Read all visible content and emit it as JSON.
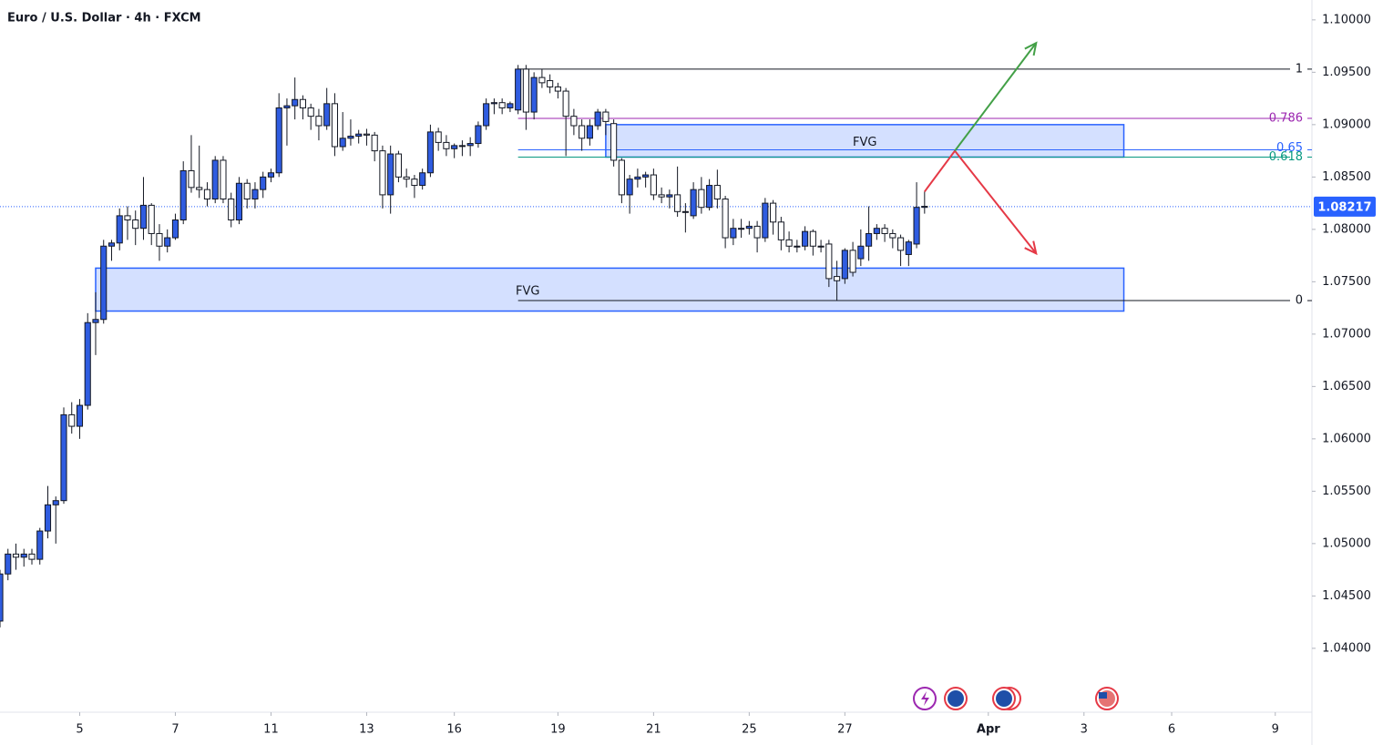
{
  "chart_data": {
    "type": "candlestick",
    "title": "Euro / U.S. Dollar · 4h · FXCM",
    "up_color": "#2f5ce0",
    "down_color": "#ffffff",
    "outline_color": "#131722",
    "ohlc": [
      [
        1.0426,
        1.0475,
        1.042,
        1.0471
      ],
      [
        1.0471,
        1.0495,
        1.0465,
        1.049
      ],
      [
        1.049,
        1.05,
        1.0475,
        1.0487
      ],
      [
        1.0487,
        1.0495,
        1.0478,
        1.049
      ],
      [
        1.049,
        1.0495,
        1.048,
        1.0485
      ],
      [
        1.0485,
        1.0515,
        1.048,
        1.0512
      ],
      [
        1.0512,
        1.0555,
        1.0505,
        1.0537
      ],
      [
        1.0537,
        1.0545,
        1.05,
        1.0541
      ],
      [
        1.0541,
        1.063,
        1.0538,
        1.0623
      ],
      [
        1.0623,
        1.0635,
        1.0605,
        1.0612
      ],
      [
        1.0612,
        1.0638,
        1.06,
        1.0632
      ],
      [
        1.0632,
        1.072,
        1.0628,
        1.0711
      ],
      [
        1.0711,
        1.074,
        1.068,
        1.0714
      ],
      [
        1.0714,
        1.079,
        1.071,
        1.0784
      ],
      [
        1.0784,
        1.079,
        1.077,
        1.0787
      ],
      [
        1.0787,
        1.082,
        1.078,
        1.0813
      ],
      [
        1.0813,
        1.0822,
        1.079,
        1.0809
      ],
      [
        1.0809,
        1.0818,
        1.0785,
        1.0801
      ],
      [
        1.0801,
        1.085,
        1.079,
        1.0823
      ],
      [
        1.0823,
        1.0825,
        1.0785,
        1.0796
      ],
      [
        1.0796,
        1.0805,
        1.077,
        1.0784
      ],
      [
        1.0784,
        1.08,
        1.0778,
        1.0792
      ],
      [
        1.0792,
        1.0815,
        1.079,
        1.0809
      ],
      [
        1.0809,
        1.0865,
        1.0805,
        1.0856
      ],
      [
        1.0856,
        1.089,
        1.0835,
        1.084
      ],
      [
        1.084,
        1.088,
        1.083,
        1.0838
      ],
      [
        1.0838,
        1.0845,
        1.0822,
        1.0829
      ],
      [
        1.0829,
        1.087,
        1.0825,
        1.0866
      ],
      [
        1.0866,
        1.087,
        1.0825,
        1.0829
      ],
      [
        1.0829,
        1.0835,
        1.0802,
        1.0809
      ],
      [
        1.0809,
        1.085,
        1.0805,
        1.0844
      ],
      [
        1.0844,
        1.0848,
        1.082,
        1.0829
      ],
      [
        1.0829,
        1.0845,
        1.082,
        1.0838
      ],
      [
        1.0838,
        1.0855,
        1.083,
        1.085
      ],
      [
        1.085,
        1.0858,
        1.0845,
        1.0854
      ],
      [
        1.0854,
        1.093,
        1.085,
        1.0916
      ],
      [
        1.0916,
        1.0925,
        1.088,
        1.0918
      ],
      [
        1.0918,
        1.0945,
        1.0905,
        1.0924
      ],
      [
        1.0924,
        1.0928,
        1.0905,
        1.0916
      ],
      [
        1.0916,
        1.092,
        1.0895,
        1.0908
      ],
      [
        1.0908,
        1.0915,
        1.0885,
        1.0899
      ],
      [
        1.0899,
        1.0935,
        1.0895,
        1.092
      ],
      [
        1.092,
        1.093,
        1.087,
        1.0879
      ],
      [
        1.0879,
        1.0912,
        1.0875,
        1.0887
      ],
      [
        1.0887,
        1.0905,
        1.088,
        1.0889
      ],
      [
        1.0889,
        1.0895,
        1.0882,
        1.0891
      ],
      [
        1.0891,
        1.0896,
        1.088,
        1.089
      ],
      [
        1.089,
        1.0893,
        1.0865,
        1.0875
      ],
      [
        1.0875,
        1.088,
        1.082,
        1.0833
      ],
      [
        1.0833,
        1.088,
        1.0815,
        1.0872
      ],
      [
        1.0872,
        1.0875,
        1.0845,
        1.085
      ],
      [
        1.085,
        1.0858,
        1.084,
        1.0848
      ],
      [
        1.0848,
        1.0852,
        1.083,
        1.0842
      ],
      [
        1.0842,
        1.0858,
        1.0838,
        1.0854
      ],
      [
        1.0854,
        1.09,
        1.085,
        1.0893
      ],
      [
        1.0893,
        1.0897,
        1.0875,
        1.0883
      ],
      [
        1.0883,
        1.089,
        1.087,
        1.0877
      ],
      [
        1.0877,
        1.0882,
        1.0868,
        1.088
      ],
      [
        1.088,
        1.0885,
        1.087,
        1.088
      ],
      [
        1.088,
        1.0888,
        1.087,
        1.0882
      ],
      [
        1.0882,
        1.0903,
        1.0878,
        1.0899
      ],
      [
        1.0899,
        1.0925,
        1.0895,
        1.092
      ],
      [
        1.092,
        1.0925,
        1.091,
        1.0921
      ],
      [
        1.0921,
        1.0925,
        1.091,
        1.0916
      ],
      [
        1.0916,
        1.0922,
        1.0912,
        1.092
      ],
      [
        1.0914,
        1.0957,
        1.091,
        1.0953
      ],
      [
        1.0953,
        1.0957,
        1.0895,
        1.0912
      ],
      [
        1.0912,
        1.095,
        1.0905,
        1.0945
      ],
      [
        1.0945,
        1.0953,
        1.0935,
        1.094
      ],
      [
        1.0942,
        1.0948,
        1.093,
        1.0936
      ],
      [
        1.0936,
        1.094,
        1.0925,
        1.0932
      ],
      [
        1.0932,
        1.0935,
        1.087,
        1.0908
      ],
      [
        1.0908,
        1.0915,
        1.089,
        1.0899
      ],
      [
        1.0899,
        1.0905,
        1.0875,
        1.0887
      ],
      [
        1.0887,
        1.0905,
        1.088,
        1.0899
      ],
      [
        1.0899,
        1.0915,
        1.0895,
        1.0912
      ],
      [
        1.0912,
        1.0915,
        1.089,
        1.0903
      ],
      [
        1.0901,
        1.0905,
        1.086,
        1.0866
      ],
      [
        1.0866,
        1.0868,
        1.0825,
        1.0833
      ],
      [
        1.0833,
        1.0852,
        1.0815,
        1.0848
      ],
      [
        1.0848,
        1.0858,
        1.084,
        1.085
      ],
      [
        1.085,
        1.0855,
        1.084,
        1.0852
      ],
      [
        1.0852,
        1.0858,
        1.0828,
        1.0833
      ],
      [
        1.0833,
        1.084,
        1.0825,
        1.0831
      ],
      [
        1.0831,
        1.0838,
        1.082,
        1.0833
      ],
      [
        1.0833,
        1.086,
        1.0812,
        1.0817
      ],
      [
        1.0817,
        1.0825,
        1.0797,
        1.0817
      ],
      [
        1.0813,
        1.0845,
        1.081,
        1.0838
      ],
      [
        1.0838,
        1.085,
        1.0815,
        1.0821
      ],
      [
        1.0821,
        1.0848,
        1.0818,
        1.0842
      ],
      [
        1.0842,
        1.0857,
        1.082,
        1.0829
      ],
      [
        1.0829,
        1.0832,
        1.0782,
        1.0792
      ],
      [
        1.0792,
        1.081,
        1.0785,
        1.0801
      ],
      [
        1.0801,
        1.081,
        1.0792,
        1.0801
      ],
      [
        1.0801,
        1.0808,
        1.0795,
        1.0803
      ],
      [
        1.0803,
        1.0808,
        1.0778,
        1.0792
      ],
      [
        1.0792,
        1.083,
        1.0788,
        1.0825
      ],
      [
        1.0825,
        1.0828,
        1.0795,
        1.0807
      ],
      [
        1.0807,
        1.0812,
        1.078,
        1.079
      ],
      [
        1.079,
        1.0798,
        1.0778,
        1.0784
      ],
      [
        1.0784,
        1.079,
        1.0778,
        1.0784
      ],
      [
        1.0784,
        1.0803,
        1.078,
        1.0798
      ],
      [
        1.0798,
        1.08,
        1.0775,
        1.0784
      ],
      [
        1.0784,
        1.079,
        1.0778,
        1.0784
      ],
      [
        1.0786,
        1.079,
        1.0745,
        1.0753
      ],
      [
        1.0755,
        1.077,
        1.0732,
        1.0751
      ],
      [
        1.0753,
        1.0782,
        1.0748,
        1.078
      ],
      [
        1.078,
        1.0788,
        1.0755,
        1.0759
      ],
      [
        1.0772,
        1.08,
        1.0765,
        1.0784
      ],
      [
        1.0784,
        1.0822,
        1.077,
        1.0796
      ],
      [
        1.0796,
        1.0805,
        1.079,
        1.0801
      ],
      [
        1.0801,
        1.0805,
        1.0788,
        1.0796
      ],
      [
        1.0796,
        1.08,
        1.0782,
        1.0792
      ],
      [
        1.0792,
        1.0795,
        1.0765,
        1.078
      ],
      [
        1.0776,
        1.079,
        1.0765,
        1.0788
      ],
      [
        1.0786,
        1.0845,
        1.0782,
        1.0821
      ],
      [
        1.0821,
        1.0836,
        1.0815,
        1.0822
      ]
    ],
    "xlim": [
      0,
      164.6
    ],
    "xticks": [
      {
        "value": 10,
        "label": "5"
      },
      {
        "value": 22,
        "label": "7"
      },
      {
        "value": 34,
        "label": "11"
      },
      {
        "value": 46,
        "label": "13"
      },
      {
        "value": 57,
        "label": "16"
      },
      {
        "value": 70,
        "label": "19"
      },
      {
        "value": 82,
        "label": "21"
      },
      {
        "value": 94,
        "label": "25"
      },
      {
        "value": 106,
        "label": "27"
      },
      {
        "value": 124,
        "label": "Apr"
      },
      {
        "value": 136,
        "label": "3"
      },
      {
        "value": 147,
        "label": "6"
      },
      {
        "value": 160,
        "label": "9"
      }
    ],
    "ylim": [
      1.0339,
      1.1019
    ],
    "yticks": [
      {
        "value": 1.04,
        "label": "1.04000"
      },
      {
        "value": 1.045,
        "label": "1.04500"
      },
      {
        "value": 1.05,
        "label": "1.05000"
      },
      {
        "value": 1.055,
        "label": "1.05500"
      },
      {
        "value": 1.06,
        "label": "1.06000"
      },
      {
        "value": 1.065,
        "label": "1.06500"
      },
      {
        "value": 1.07,
        "label": "1.07000"
      },
      {
        "value": 1.075,
        "label": "1.07500"
      },
      {
        "value": 1.08,
        "label": "1.08000"
      },
      {
        "value": 1.085,
        "label": "1.08500"
      },
      {
        "value": 1.09,
        "label": "1.09000"
      },
      {
        "value": 1.095,
        "label": "1.09500"
      },
      {
        "value": 1.1,
        "label": "1.10000"
      }
    ],
    "current_price": {
      "value": 1.08217,
      "label": "1.08217",
      "color": "#2962ff"
    },
    "fib": {
      "start": 65,
      "levels": [
        {
          "label": "1",
          "value": 1.0953,
          "color": "#131722"
        },
        {
          "label": "0.786",
          "value": 1.0906,
          "color": "#9c27b0"
        },
        {
          "label": "0.65",
          "value": 1.0876,
          "color": "#2962ff"
        },
        {
          "label": "0.618",
          "value": 1.0869,
          "color": "#089981"
        },
        {
          "label": "0",
          "value": 1.0732,
          "color": "#131722"
        }
      ]
    },
    "zones": [
      {
        "label": "FVG",
        "start": 76,
        "end": 141,
        "top": 1.09,
        "bottom": 1.0869
      },
      {
        "label": "FVG",
        "start": 12,
        "end": 141,
        "top": 1.0763,
        "bottom": 1.0722
      }
    ],
    "arrows": [
      {
        "color": "#e53946",
        "x": [
          116,
          119.8,
          130
        ],
        "y": [
          1.0836,
          1.0875,
          1.0777
        ]
      },
      {
        "color": "#43a047",
        "x": [
          119.8,
          130
        ],
        "y": [
          1.0875,
          1.0978
        ]
      }
    ]
  }
}
